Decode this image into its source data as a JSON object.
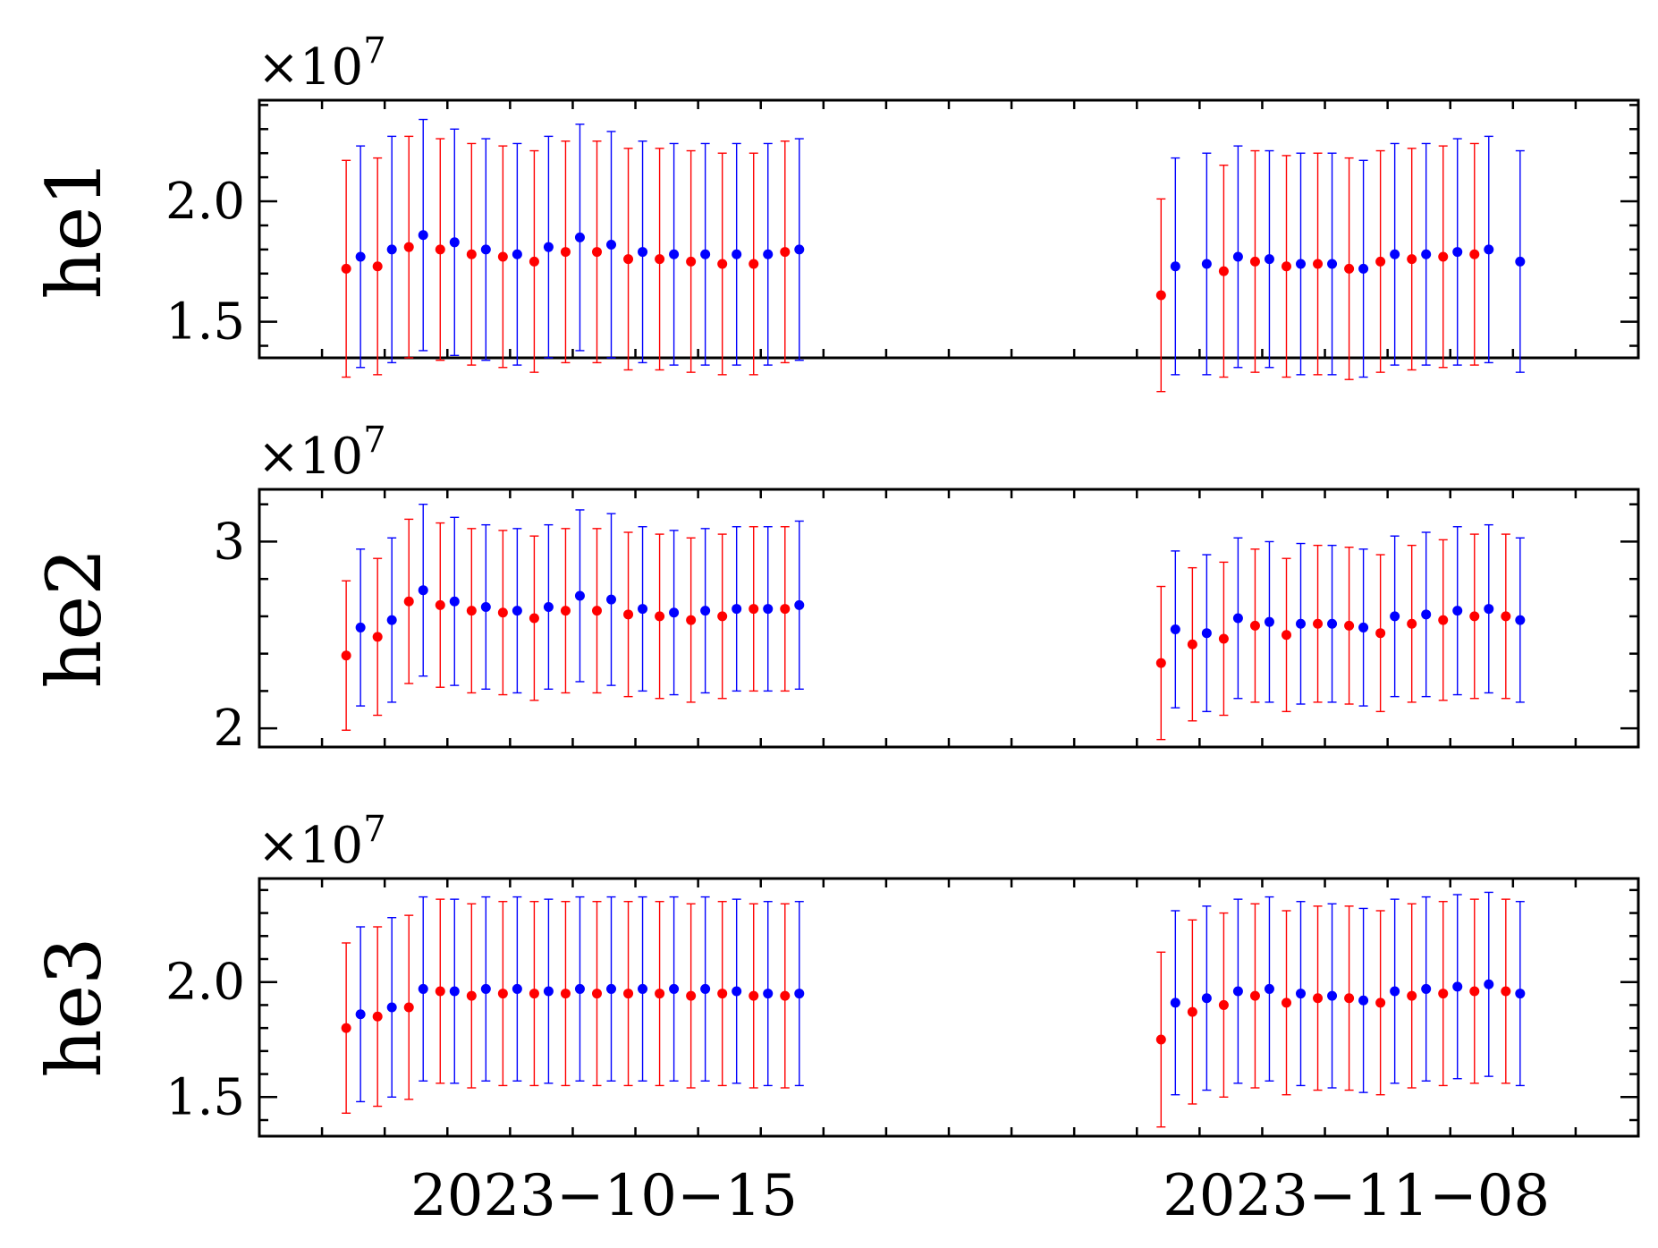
{
  "chart_data": {
    "type": "scatter",
    "subtype": "errorbar",
    "x_axis": {
      "type": "date",
      "range": [
        "2023-10-04",
        "2023-11-17"
      ],
      "tick_labels": [
        "2023−10−15",
        "2023−11−08"
      ],
      "tick_dates": [
        "2023-10-15",
        "2023-11-08"
      ]
    },
    "x": [
      "2023-10-07",
      "2023-10-08",
      "2023-10-09",
      "2023-10-10",
      "2023-10-11",
      "2023-10-12",
      "2023-10-13",
      "2023-10-14",
      "2023-10-15",
      "2023-10-16",
      "2023-10-17",
      "2023-10-18",
      "2023-10-19",
      "2023-10-20",
      "2023-10-21",
      "2023-11-02",
      "2023-11-03",
      "2023-11-04",
      "2023-11-05",
      "2023-11-06",
      "2023-11-07",
      "2023-11-08",
      "2023-11-09",
      "2023-11-10",
      "2023-11-11",
      "2023-11-12",
      "2023-11-13",
      "2023-11-14",
      "2023-11-15",
      "2023-11-16"
    ],
    "colors": {
      "series_red": "#ff0000",
      "series_blue": "#0000ff"
    },
    "grid": false,
    "legend": "none",
    "panels": [
      {
        "ylabel": "he1",
        "offset_label": "×10",
        "offset_exp": "7",
        "ylim": [
          1.35,
          2.42
        ],
        "yticks": [
          1.5,
          2.0
        ],
        "ytick_labels": [
          "1.5",
          "2.0"
        ],
        "series": [
          {
            "color": "red",
            "values": [
              1.72,
              1.73,
              1.81,
              1.8,
              1.78,
              1.77,
              1.75,
              1.79,
              1.79,
              1.76,
              1.76,
              1.75,
              1.74,
              1.74,
              1.79,
              1.61,
              null,
              1.71,
              1.75,
              1.73,
              1.74,
              1.72,
              1.75,
              1.76,
              1.77,
              1.78,
              null,
              null,
              null,
              null
            ],
            "err": [
              0.45,
              0.45,
              0.46,
              0.46,
              0.46,
              0.46,
              0.46,
              0.46,
              0.46,
              0.46,
              0.46,
              0.46,
              0.46,
              0.46,
              0.46,
              0.4,
              null,
              0.44,
              0.46,
              0.46,
              0.46,
              0.46,
              0.46,
              0.46,
              0.46,
              0.46,
              null,
              null,
              null,
              null
            ]
          },
          {
            "color": "blue",
            "values": [
              1.77,
              1.8,
              1.86,
              1.83,
              1.8,
              1.78,
              1.81,
              1.85,
              1.82,
              1.79,
              1.78,
              1.78,
              1.78,
              1.78,
              1.8,
              1.73,
              1.74,
              1.77,
              1.76,
              1.74,
              1.74,
              1.72,
              1.78,
              1.78,
              1.79,
              1.8,
              1.75,
              null,
              null,
              null
            ],
            "err": [
              0.46,
              0.47,
              0.48,
              0.47,
              0.46,
              0.46,
              0.46,
              0.47,
              0.47,
              0.46,
              0.46,
              0.46,
              0.46,
              0.46,
              0.46,
              0.45,
              0.46,
              0.46,
              0.45,
              0.46,
              0.46,
              0.45,
              0.46,
              0.46,
              0.47,
              0.47,
              0.46,
              null,
              null,
              null
            ]
          }
        ]
      },
      {
        "ylabel": "he2",
        "offset_label": "×10",
        "offset_exp": "7",
        "ylim": [
          1.9,
          3.28
        ],
        "yticks": [
          2,
          3
        ],
        "ytick_labels": [
          "2",
          "3"
        ],
        "series": [
          {
            "color": "red",
            "values": [
              2.39,
              2.49,
              2.68,
              2.66,
              2.63,
              2.62,
              2.59,
              2.63,
              2.63,
              2.61,
              2.6,
              2.58,
              2.6,
              2.64,
              2.64,
              2.35,
              2.45,
              2.48,
              2.55,
              2.5,
              2.56,
              2.55,
              2.51,
              2.56,
              2.58,
              2.6,
              2.6,
              null,
              null,
              null
            ],
            "err": [
              0.4,
              0.42,
              0.44,
              0.44,
              0.44,
              0.44,
              0.44,
              0.44,
              0.44,
              0.44,
              0.44,
              0.44,
              0.44,
              0.44,
              0.44,
              0.41,
              0.41,
              0.41,
              0.41,
              0.41,
              0.42,
              0.42,
              0.42,
              0.42,
              0.43,
              0.44,
              0.44,
              null,
              null,
              null
            ]
          },
          {
            "color": "blue",
            "values": [
              2.54,
              2.58,
              2.74,
              2.68,
              2.65,
              2.63,
              2.65,
              2.71,
              2.69,
              2.64,
              2.62,
              2.63,
              2.64,
              2.64,
              2.66,
              2.53,
              2.51,
              2.59,
              2.57,
              2.56,
              2.56,
              2.54,
              2.6,
              2.61,
              2.63,
              2.64,
              2.58,
              null,
              null,
              null
            ],
            "err": [
              0.42,
              0.44,
              0.46,
              0.45,
              0.44,
              0.44,
              0.44,
              0.46,
              0.46,
              0.44,
              0.44,
              0.44,
              0.44,
              0.44,
              0.45,
              0.42,
              0.42,
              0.43,
              0.43,
              0.43,
              0.42,
              0.42,
              0.43,
              0.44,
              0.45,
              0.45,
              0.44,
              null,
              null,
              null
            ]
          }
        ]
      },
      {
        "ylabel": "he3",
        "offset_label": "×10",
        "offset_exp": "7",
        "ylim": [
          1.33,
          2.45
        ],
        "yticks": [
          1.5,
          2.0
        ],
        "ytick_labels": [
          "1.5",
          "2.0"
        ],
        "series": [
          {
            "color": "red",
            "values": [
              1.8,
              1.85,
              1.89,
              1.96,
              1.94,
              1.95,
              1.95,
              1.95,
              1.95,
              1.95,
              1.95,
              1.94,
              1.95,
              1.94,
              1.94,
              1.75,
              1.87,
              1.9,
              1.94,
              1.91,
              1.93,
              1.93,
              1.91,
              1.94,
              1.95,
              1.96,
              1.96,
              null,
              null,
              null
            ],
            "err": [
              0.37,
              0.39,
              0.4,
              0.4,
              0.4,
              0.4,
              0.4,
              0.4,
              0.4,
              0.4,
              0.4,
              0.4,
              0.4,
              0.4,
              0.4,
              0.38,
              0.4,
              0.4,
              0.4,
              0.4,
              0.4,
              0.4,
              0.4,
              0.4,
              0.4,
              0.4,
              0.4,
              null,
              null,
              null
            ]
          },
          {
            "color": "blue",
            "values": [
              1.86,
              1.89,
              1.97,
              1.96,
              1.97,
              1.97,
              1.96,
              1.97,
              1.97,
              1.97,
              1.97,
              1.97,
              1.96,
              1.95,
              1.95,
              1.91,
              1.93,
              1.96,
              1.97,
              1.95,
              1.94,
              1.92,
              1.96,
              1.97,
              1.98,
              1.99,
              1.95,
              null,
              null,
              null
            ],
            "err": [
              0.38,
              0.39,
              0.4,
              0.4,
              0.4,
              0.4,
              0.4,
              0.4,
              0.4,
              0.4,
              0.4,
              0.4,
              0.4,
              0.4,
              0.4,
              0.4,
              0.4,
              0.4,
              0.4,
              0.4,
              0.4,
              0.4,
              0.4,
              0.4,
              0.4,
              0.4,
              0.4,
              null,
              null,
              null
            ]
          }
        ]
      }
    ]
  }
}
